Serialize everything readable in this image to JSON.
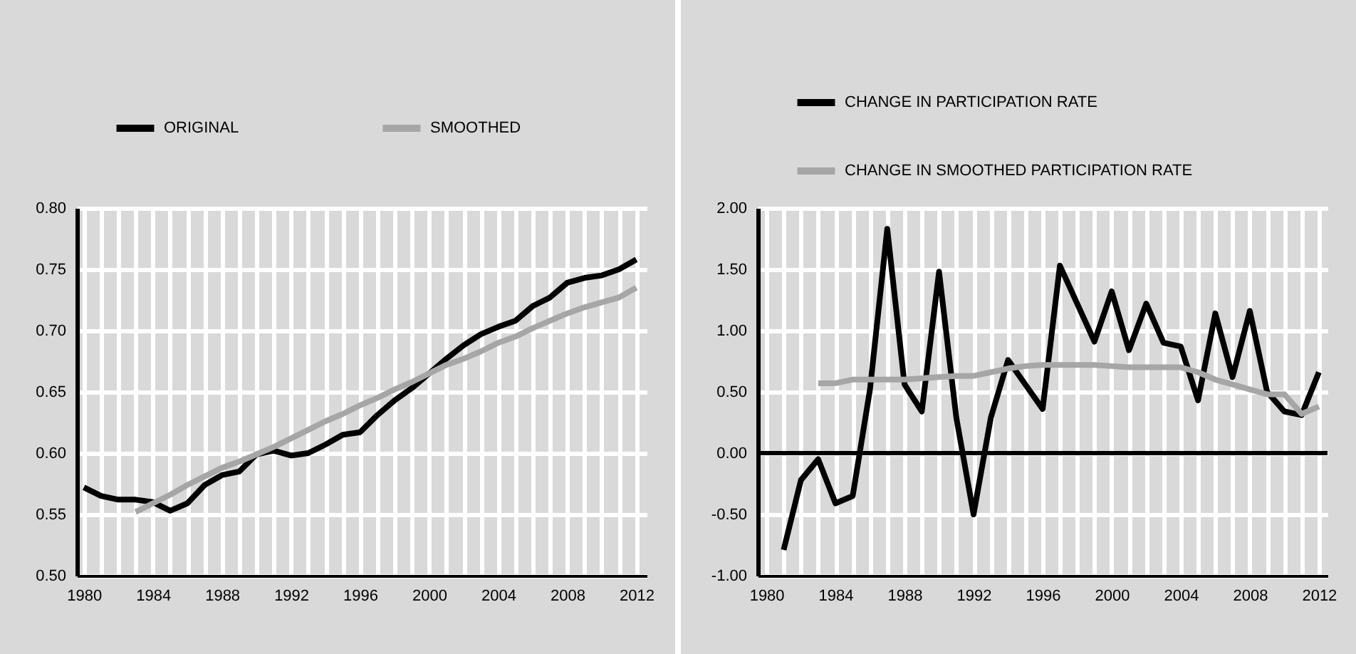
{
  "chart_data": [
    {
      "type": "line",
      "legend": "top",
      "grid": true,
      "xlim": [
        1979.6,
        2012.6
      ],
      "xticks": [
        1980,
        1984,
        1988,
        1992,
        1996,
        2000,
        2004,
        2008,
        2012
      ],
      "ylim": [
        0.5,
        0.8
      ],
      "yticks": [
        {
          "value": 0.5,
          "label": "0.50"
        },
        {
          "value": 0.55,
          "label": "0.55"
        },
        {
          "value": 0.6,
          "label": "0.60"
        },
        {
          "value": 0.65,
          "label": "0.65"
        },
        {
          "value": 0.7,
          "label": "0.70"
        },
        {
          "value": 0.75,
          "label": "0.75"
        },
        {
          "value": 0.8,
          "label": "0.80"
        }
      ],
      "series": [
        {
          "name": "ORIGINAL",
          "color": "#000000",
          "x": [
            1980,
            1981,
            1982,
            1983,
            1984,
            1985,
            1986,
            1987,
            1988,
            1989,
            1990,
            1991,
            1992,
            1993,
            1994,
            1995,
            1996,
            1997,
            1998,
            1999,
            2000,
            2001,
            2002,
            2003,
            2004,
            2005,
            2006,
            2007,
            2008,
            2009,
            2010,
            2011,
            2012
          ],
          "values": [
            0.572,
            0.565,
            0.562,
            0.562,
            0.56,
            0.553,
            0.559,
            0.574,
            0.582,
            0.585,
            0.599,
            0.602,
            0.598,
            0.6,
            0.607,
            0.615,
            0.617,
            0.631,
            0.643,
            0.653,
            0.665,
            0.677,
            0.688,
            0.697,
            0.703,
            0.708,
            0.72,
            0.727,
            0.739,
            0.743,
            0.745,
            0.75,
            0.758
          ]
        },
        {
          "name": "SMOOTHED",
          "color": "#a6a6a6",
          "x": [
            1983,
            1984,
            1985,
            1986,
            1987,
            1988,
            1989,
            1990,
            1991,
            1992,
            1993,
            1994,
            1995,
            1996,
            1997,
            1998,
            1999,
            2000,
            2001,
            2002,
            2003,
            2004,
            2005,
            2006,
            2007,
            2008,
            2009,
            2010,
            2011,
            2012
          ],
          "values": [
            0.552,
            0.559,
            0.566,
            0.574,
            0.581,
            0.588,
            0.593,
            0.599,
            0.605,
            0.612,
            0.619,
            0.626,
            0.632,
            0.639,
            0.645,
            0.652,
            0.658,
            0.665,
            0.672,
            0.677,
            0.683,
            0.69,
            0.695,
            0.702,
            0.708,
            0.714,
            0.719,
            0.723,
            0.727,
            0.735
          ]
        }
      ]
    },
    {
      "type": "line",
      "legend": "top left",
      "grid": true,
      "xlim": [
        1979.5,
        2012.5
      ],
      "xticks": [
        1980,
        1984,
        1988,
        1992,
        1996,
        2000,
        2004,
        2008,
        2012
      ],
      "ylim": [
        -1,
        2
      ],
      "yticks": [
        {
          "value": -1,
          "label": "-1.00"
        },
        {
          "value": -0.5,
          "label": "-0.50"
        },
        {
          "value": 0,
          "label": "0.00"
        },
        {
          "value": 0.5,
          "label": "0.50"
        },
        {
          "value": 1,
          "label": "1.00"
        },
        {
          "value": 1.5,
          "label": "1.50"
        },
        {
          "value": 2,
          "label": "2.00"
        }
      ],
      "ref_lines": [
        {
          "axis": "y",
          "value": 0,
          "color": "#000000"
        }
      ],
      "series": [
        {
          "name": "CHANGE IN PARTICIPATION RATE",
          "color": "#000000",
          "x": [
            1981,
            1982,
            1983,
            1984,
            1985,
            1986,
            1987,
            1988,
            1989,
            1990,
            1991,
            1992,
            1993,
            1994,
            1995,
            1996,
            1997,
            1998,
            1999,
            2000,
            2001,
            2002,
            2003,
            2004,
            2005,
            2006,
            2007,
            2008,
            2009,
            2010,
            2011,
            2012
          ],
          "values": [
            -0.79,
            -0.22,
            -0.05,
            -0.41,
            -0.35,
            0.52,
            1.83,
            0.56,
            0.34,
            1.48,
            0.29,
            -0.5,
            0.29,
            0.76,
            0.56,
            0.36,
            1.53,
            1.22,
            0.91,
            1.32,
            0.84,
            1.22,
            0.9,
            0.87,
            0.43,
            1.14,
            0.62,
            1.16,
            0.5,
            0.34,
            0.31,
            0.66
          ]
        },
        {
          "name": "CHANGE IN SMOOTHED PARTICIPATION RATE",
          "color": "#a6a6a6",
          "x": [
            1983,
            1984,
            1985,
            1986,
            1987,
            1988,
            1989,
            1990,
            1991,
            1992,
            1993,
            1994,
            1995,
            1996,
            1997,
            1998,
            1999,
            2000,
            2001,
            2002,
            2003,
            2004,
            2005,
            2006,
            2007,
            2008,
            2009,
            2010,
            2011,
            2012
          ],
          "values": [
            0.57,
            0.57,
            0.6,
            0.6,
            0.6,
            0.6,
            0.61,
            0.62,
            0.63,
            0.63,
            0.66,
            0.69,
            0.71,
            0.72,
            0.72,
            0.72,
            0.72,
            0.71,
            0.7,
            0.7,
            0.7,
            0.7,
            0.66,
            0.6,
            0.56,
            0.52,
            0.48,
            0.48,
            0.32,
            0.38
          ]
        }
      ]
    }
  ]
}
